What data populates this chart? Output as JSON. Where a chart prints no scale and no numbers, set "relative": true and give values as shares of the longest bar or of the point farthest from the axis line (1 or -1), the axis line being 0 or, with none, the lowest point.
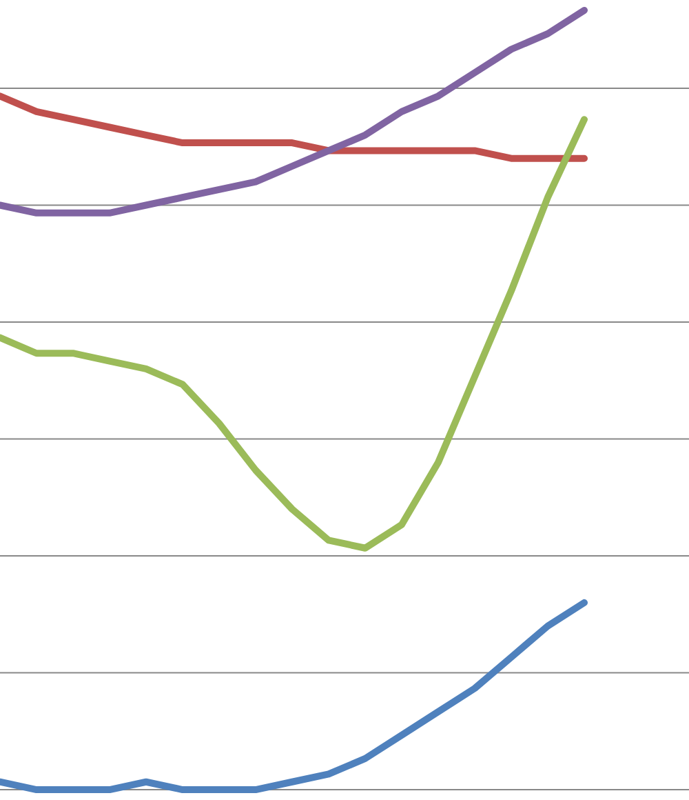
{
  "chart_data": {
    "type": "line",
    "relative": true,
    "grid": "y",
    "marker": "none",
    "line_style": "solid",
    "categories": [
      null,
      null,
      null,
      null,
      null,
      null,
      null,
      null,
      null,
      null,
      null,
      null,
      null,
      null,
      null,
      null,
      null
    ],
    "series": [
      {
        "color": "#c0504d",
        "values": [
          0.89,
          0.87,
          0.86,
          0.85,
          0.84,
          0.83,
          0.83,
          0.83,
          0.83,
          0.82,
          0.82,
          0.82,
          0.82,
          0.82,
          0.81,
          0.81,
          0.81
        ]
      },
      {
        "color": "#8064a2",
        "values": [
          0.75,
          0.74,
          0.74,
          0.74,
          0.75,
          0.76,
          0.77,
          0.78,
          0.8,
          0.82,
          0.84,
          0.87,
          0.89,
          0.92,
          0.95,
          0.97,
          1
        ]
      },
      {
        "color": "#9bbb59",
        "values": [
          0.58,
          0.56,
          0.56,
          0.55,
          0.54,
          0.52,
          0.47,
          0.41,
          0.36,
          0.32,
          0.31,
          0.34,
          0.42,
          0.53,
          0.64,
          0.76,
          0.86
        ]
      },
      {
        "color": "#4f81bd",
        "values": [
          0.01,
          0.0,
          0.0,
          0.0,
          0.01,
          0.0,
          0,
          0,
          0.01,
          0.02,
          0.04,
          0.07,
          0.1,
          0.13,
          0.17,
          0.21,
          0.24
        ]
      }
    ]
  }
}
